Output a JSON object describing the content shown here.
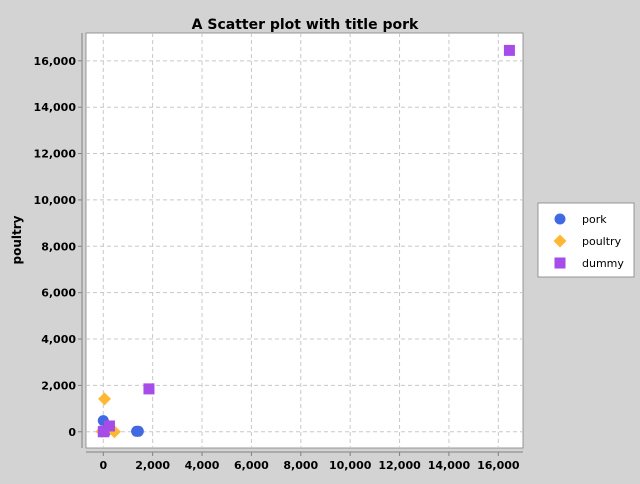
{
  "chart_data": {
    "type": "scatter",
    "title": "A Scatter plot with title pork",
    "xlabel": "",
    "ylabel": "poultry",
    "xlim": [
      -700,
      17000
    ],
    "ylim": [
      -700,
      17200
    ],
    "xticks": [
      0,
      2000,
      4000,
      6000,
      8000,
      10000,
      12000,
      14000,
      16000
    ],
    "xtick_labels": [
      "0",
      "2,000",
      "4,000",
      "6,000",
      "8,000",
      "10,000",
      "12,000",
      "14,000",
      "16,000"
    ],
    "yticks": [
      0,
      2000,
      4000,
      6000,
      8000,
      10000,
      12000,
      14000,
      16000
    ],
    "ytick_labels": [
      "0",
      "2,000",
      "4,000",
      "6,000",
      "8,000",
      "10,000",
      "12,000",
      "14,000",
      "16,000"
    ],
    "grid": true,
    "legend_position": "right",
    "series": [
      {
        "name": "pork",
        "marker": "circle",
        "color": "#4169e1",
        "points": [
          [
            0,
            480
          ],
          [
            0,
            20
          ],
          [
            100,
            10
          ],
          [
            1350,
            20
          ],
          [
            1420,
            20
          ]
        ]
      },
      {
        "name": "poultry",
        "marker": "diamond",
        "color": "#ffb833",
        "points": [
          [
            50,
            1420
          ],
          [
            200,
            150
          ],
          [
            450,
            0
          ],
          [
            -50,
            10
          ]
        ]
      },
      {
        "name": "dummy",
        "marker": "square",
        "color": "#a64ce8",
        "points": [
          [
            0,
            0
          ],
          [
            30,
            20
          ],
          [
            250,
            250
          ],
          [
            1850,
            1850
          ],
          [
            16450,
            16450
          ]
        ]
      }
    ]
  }
}
